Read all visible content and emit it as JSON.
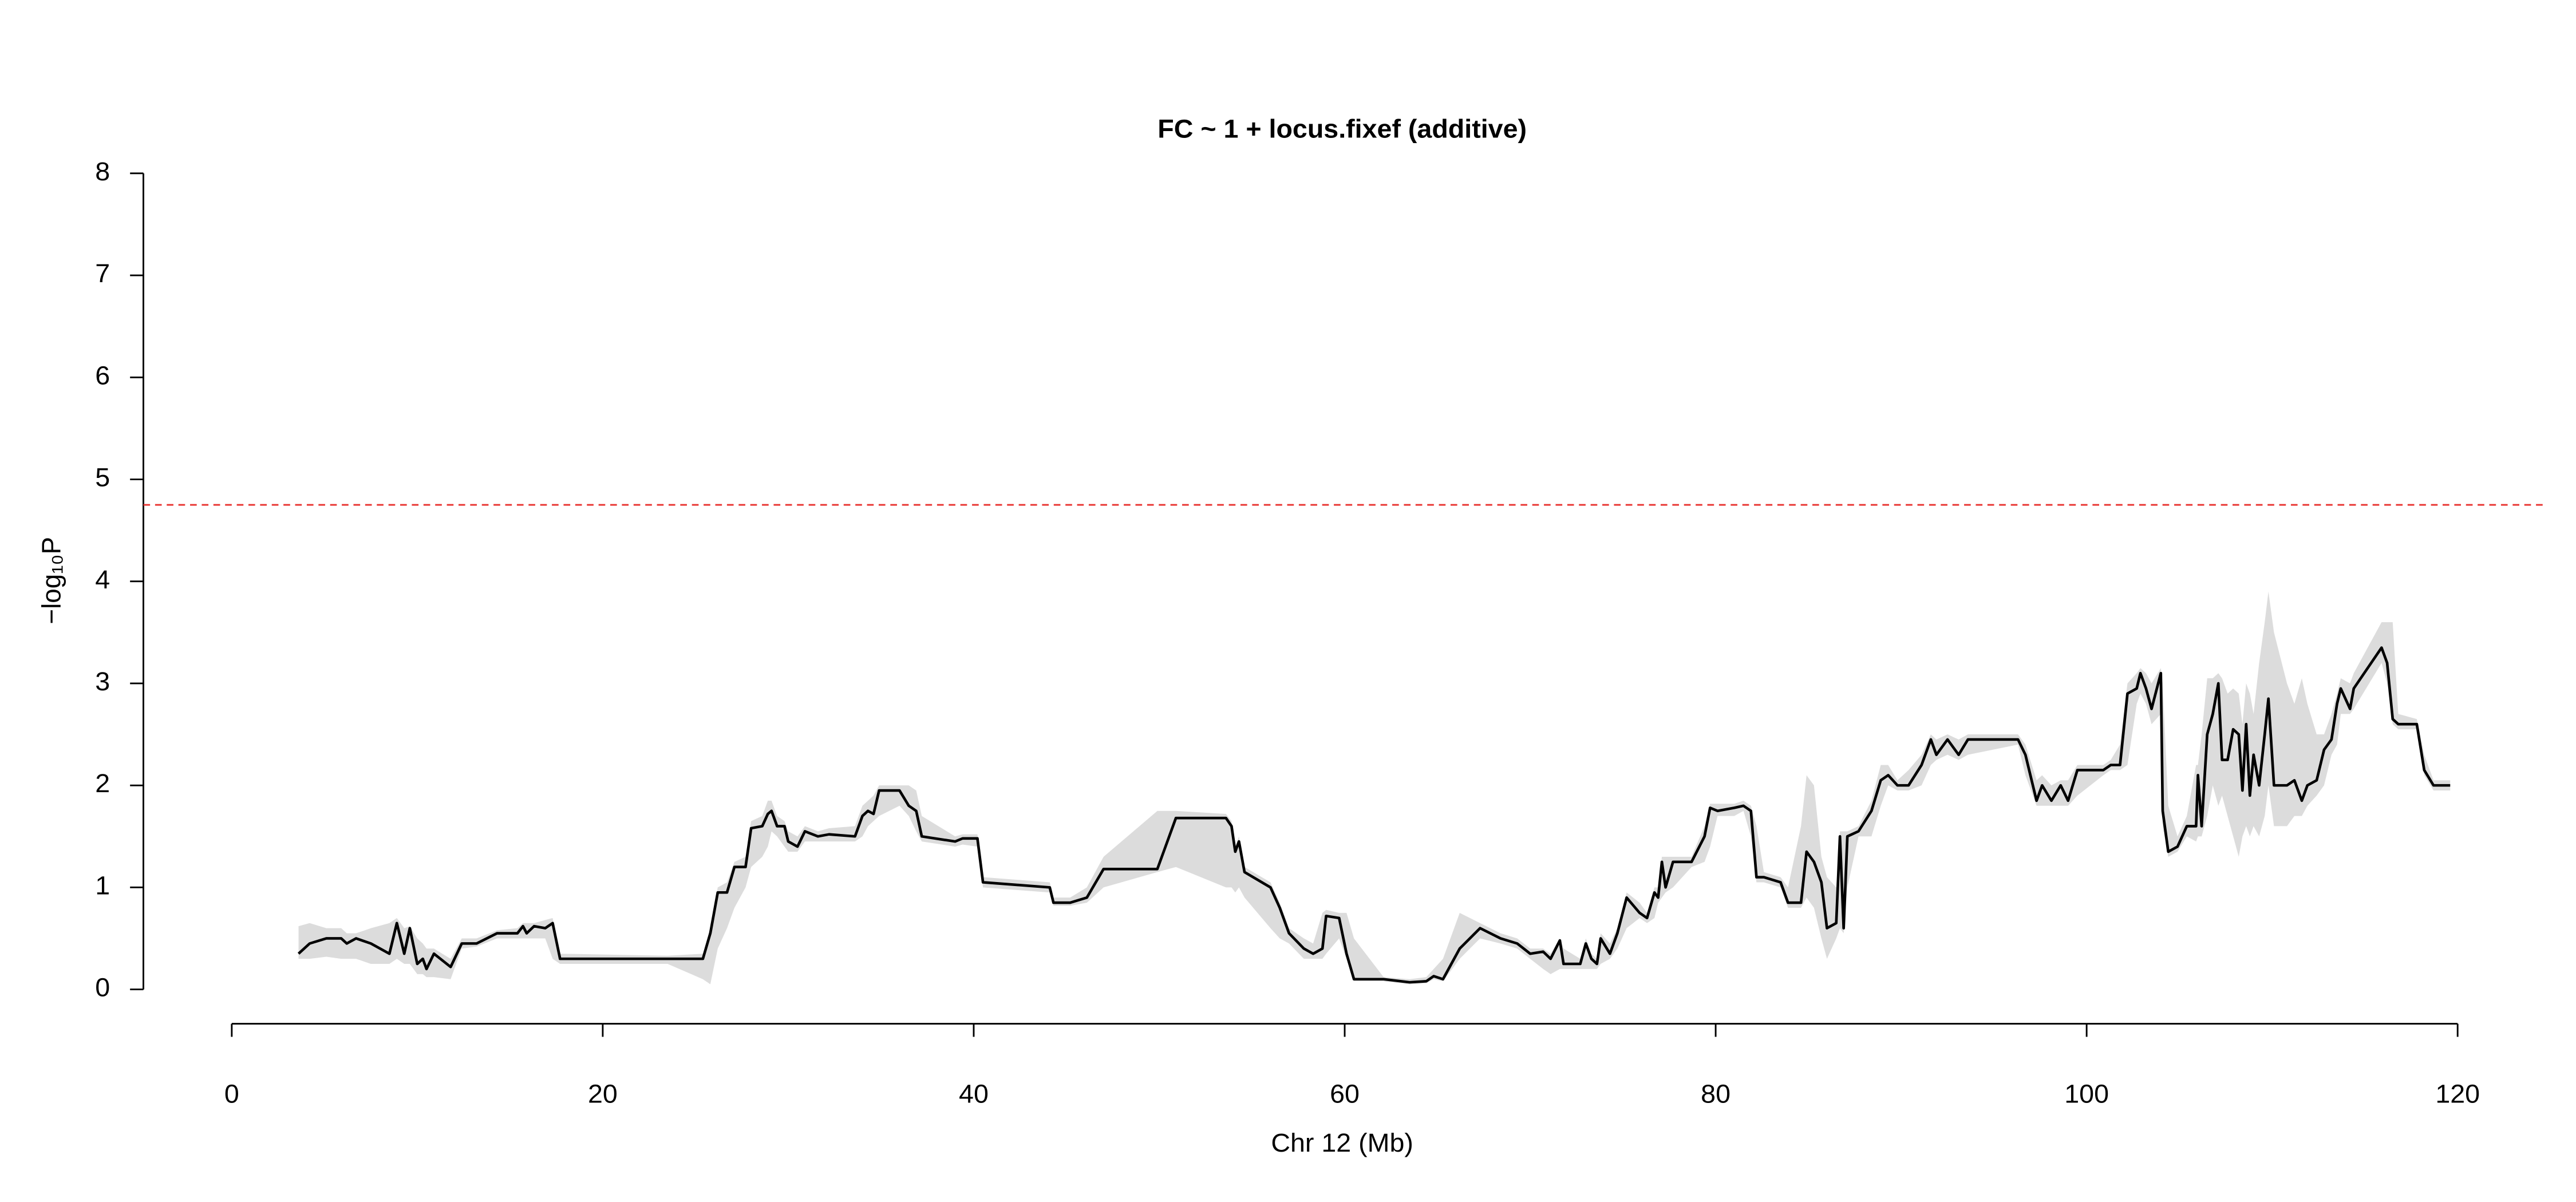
{
  "chart_data": {
    "type": "line",
    "title": "FC ~ 1 + locus.fixef (additive)",
    "xlabel": "Chr 12 (Mb)",
    "ylabel": "−log₁₀P",
    "xlim": [
      0,
      120
    ],
    "xticks": [
      0,
      20,
      40,
      60,
      80,
      100,
      120
    ],
    "ylim": [
      0,
      8
    ],
    "yticks": [
      0,
      1,
      2,
      3,
      4,
      5,
      6,
      7,
      8
    ],
    "threshold": 4.75,
    "threshold_color": "#e8322f",
    "band_color": "#dcdcdc",
    "x": [
      3.6,
      4.2,
      5.1,
      5.9,
      6.2,
      6.7,
      7.5,
      8.5,
      8.9,
      9.3,
      9.6,
      10,
      10.3,
      10.5,
      10.9,
      11.8,
      12.4,
      13.2,
      14.3,
      15.4,
      15.7,
      15.9,
      16.3,
      16.9,
      17.3,
      17.7,
      23.5,
      25.4,
      25.8,
      26.2,
      26.7,
      27.1,
      27.7,
      28,
      28.6,
      28.9,
      29.1,
      29.4,
      29.8,
      30,
      30.5,
      30.9,
      31.6,
      32.2,
      33.6,
      34,
      34.3,
      34.6,
      34.9,
      36,
      36.5,
      36.9,
      37.2,
      39,
      39.4,
      40.2,
      40.5,
      44.1,
      44.3,
      45.2,
      46.1,
      47,
      49.9,
      50.9,
      53.6,
      53.9,
      54.1,
      54.3,
      54.6,
      56,
      56.5,
      57,
      57.8,
      58.3,
      58.8,
      59,
      59.7,
      60.1,
      60.5,
      62.1,
      63.5,
      64.4,
      64.8,
      65.3,
      66.2,
      67.3,
      68.4,
      69.3,
      70,
      70.7,
      71.1,
      71.6,
      71.8,
      72.7,
      73,
      73.3,
      73.6,
      73.8,
      74.3,
      74.7,
      75.2,
      75.9,
      76.3,
      76.7,
      76.9,
      77.1,
      77.3,
      77.7,
      78.7,
      79.4,
      79.7,
      80.1,
      81,
      81.5,
      81.9,
      82.2,
      82.6,
      83.5,
      83.9,
      84.6,
      84.9,
      85.3,
      85.7,
      86,
      86.5,
      86.7,
      86.9,
      87.1,
      87.7,
      88.4,
      88.9,
      89.3,
      89.8,
      90.4,
      91.1,
      91.6,
      91.9,
      92.5,
      93.1,
      93.6,
      96.3,
      96.7,
      97.3,
      97.6,
      98.1,
      98.6,
      99,
      99.5,
      100.9,
      101.3,
      101.8,
      102.2,
      102.7,
      102.9,
      103.2,
      103.5,
      104,
      104.1,
      104.4,
      104.9,
      105.4,
      105.9,
      106,
      106.2,
      106.5,
      106.8,
      107.1,
      107.3,
      107.6,
      107.9,
      108.2,
      108.4,
      108.6,
      108.8,
      109,
      109.3,
      109.6,
      109.8,
      110.1,
      110.8,
      111.2,
      111.6,
      111.9,
      112.4,
      112.8,
      113.2,
      113.5,
      113.7,
      114.2,
      114.4,
      115.9,
      116.2,
      116.5,
      116.8,
      117.8,
      118.2,
      118.7,
      119.6
    ],
    "series": [
      {
        "color": "#000000",
        "values": [
          0.35,
          0.45,
          0.5,
          0.5,
          0.45,
          0.5,
          0.45,
          0.35,
          0.65,
          0.35,
          0.6,
          0.25,
          0.3,
          0.2,
          0.35,
          0.22,
          0.45,
          0.45,
          0.55,
          0.55,
          0.62,
          0.55,
          0.62,
          0.6,
          0.65,
          0.3,
          0.3,
          0.3,
          0.55,
          0.95,
          0.95,
          1.2,
          1.2,
          1.58,
          1.6,
          1.72,
          1.75,
          1.6,
          1.6,
          1.45,
          1.4,
          1.55,
          1.5,
          1.52,
          1.5,
          1.7,
          1.75,
          1.72,
          1.95,
          1.95,
          1.8,
          1.75,
          1.5,
          1.45,
          1.48,
          1.48,
          1.05,
          1.0,
          0.85,
          0.85,
          0.9,
          1.18,
          1.18,
          1.68,
          1.68,
          1.6,
          1.35,
          1.45,
          1.15,
          1.0,
          0.8,
          0.55,
          0.4,
          0.35,
          0.4,
          0.72,
          0.7,
          0.35,
          0.1,
          0.1,
          0.07,
          0.08,
          0.13,
          0.1,
          0.4,
          0.6,
          0.5,
          0.45,
          0.35,
          0.37,
          0.3,
          0.48,
          0.25,
          0.25,
          0.45,
          0.3,
          0.25,
          0.5,
          0.35,
          0.55,
          0.9,
          0.75,
          0.7,
          0.95,
          0.9,
          1.25,
          1.0,
          1.25,
          1.25,
          1.5,
          1.78,
          1.75,
          1.78,
          1.8,
          1.75,
          1.1,
          1.1,
          1.05,
          0.85,
          0.85,
          1.35,
          1.25,
          1.05,
          0.6,
          0.65,
          1.5,
          0.6,
          1.5,
          1.55,
          1.75,
          2.05,
          2.1,
          2.0,
          2.0,
          2.2,
          2.45,
          2.3,
          2.45,
          2.3,
          2.45,
          2.45,
          2.3,
          1.85,
          2.0,
          1.85,
          2.0,
          1.85,
          2.15,
          2.15,
          2.2,
          2.2,
          2.9,
          2.95,
          3.1,
          2.95,
          2.75,
          3.1,
          1.75,
          1.35,
          1.4,
          1.6,
          1.6,
          2.1,
          1.6,
          2.5,
          2.7,
          3.0,
          2.25,
          2.25,
          2.55,
          2.5,
          1.95,
          2.6,
          1.9,
          2.3,
          2.0,
          2.5,
          2.85,
          2.0,
          2.0,
          2.05,
          1.85,
          2.0,
          2.05,
          2.35,
          2.45,
          2.8,
          2.95,
          2.75,
          2.95,
          3.35,
          3.2,
          2.65,
          2.6,
          2.6,
          2.15,
          2.0,
          2.0
        ],
        "lower": [
          0.3,
          0.3,
          0.32,
          0.3,
          0.3,
          0.3,
          0.25,
          0.25,
          0.3,
          0.25,
          0.25,
          0.15,
          0.15,
          0.12,
          0.12,
          0.1,
          0.4,
          0.42,
          0.5,
          0.5,
          0.5,
          0.5,
          0.5,
          0.5,
          0.3,
          0.25,
          0.25,
          0.1,
          0.05,
          0.4,
          0.6,
          0.8,
          1.0,
          1.2,
          1.3,
          1.4,
          1.55,
          1.5,
          1.4,
          1.35,
          1.35,
          1.45,
          1.45,
          1.45,
          1.45,
          1.5,
          1.6,
          1.65,
          1.7,
          1.8,
          1.7,
          1.55,
          1.45,
          1.4,
          1.42,
          1.4,
          1.0,
          0.95,
          0.82,
          0.82,
          0.85,
          1.0,
          1.15,
          1.2,
          1.0,
          1.0,
          0.95,
          1.0,
          0.9,
          0.6,
          0.5,
          0.45,
          0.3,
          0.3,
          0.3,
          0.35,
          0.5,
          0.3,
          0.08,
          0.08,
          0.05,
          0.06,
          0.1,
          0.08,
          0.3,
          0.5,
          0.45,
          0.4,
          0.3,
          0.2,
          0.15,
          0.2,
          0.2,
          0.2,
          0.2,
          0.2,
          0.2,
          0.25,
          0.3,
          0.4,
          0.6,
          0.7,
          0.65,
          0.7,
          0.85,
          0.9,
          0.95,
          1.0,
          1.2,
          1.25,
          1.4,
          1.7,
          1.7,
          1.75,
          1.5,
          1.05,
          1.05,
          1.0,
          0.8,
          0.8,
          0.9,
          0.8,
          0.5,
          0.3,
          0.5,
          0.6,
          0.55,
          1.0,
          1.5,
          1.5,
          1.8,
          2.0,
          1.95,
          1.95,
          2.0,
          2.2,
          2.25,
          2.3,
          2.25,
          2.3,
          2.4,
          2.1,
          1.8,
          1.8,
          1.8,
          1.8,
          1.8,
          1.9,
          2.1,
          2.15,
          2.15,
          2.2,
          2.8,
          2.9,
          2.8,
          2.6,
          2.7,
          1.6,
          1.3,
          1.35,
          1.5,
          1.45,
          1.5,
          1.5,
          1.7,
          2.0,
          1.8,
          1.9,
          1.7,
          1.5,
          1.3,
          1.5,
          1.6,
          1.5,
          1.6,
          1.5,
          1.7,
          2.0,
          1.6,
          1.6,
          1.7,
          1.7,
          1.8,
          1.9,
          2.0,
          2.3,
          2.4,
          2.7,
          2.7,
          2.75,
          3.2,
          3.0,
          2.6,
          2.55,
          2.55,
          2.1,
          1.95,
          1.95
        ],
        "upper": [
          0.62,
          0.65,
          0.6,
          0.6,
          0.55,
          0.55,
          0.6,
          0.65,
          0.7,
          0.6,
          0.62,
          0.5,
          0.45,
          0.4,
          0.4,
          0.3,
          0.5,
          0.5,
          0.58,
          0.6,
          0.65,
          0.65,
          0.65,
          0.68,
          0.7,
          0.35,
          0.33,
          0.35,
          0.6,
          1.0,
          1.05,
          1.25,
          1.3,
          1.65,
          1.7,
          1.85,
          1.85,
          1.7,
          1.65,
          1.55,
          1.5,
          1.6,
          1.55,
          1.58,
          1.6,
          1.8,
          1.85,
          1.9,
          2.0,
          2.0,
          2.0,
          1.95,
          1.7,
          1.5,
          1.52,
          1.52,
          1.1,
          1.05,
          0.9,
          0.9,
          1.0,
          1.3,
          1.75,
          1.75,
          1.72,
          1.65,
          1.4,
          1.5,
          1.2,
          1.05,
          0.85,
          0.6,
          0.5,
          0.45,
          0.75,
          0.78,
          0.75,
          0.75,
          0.5,
          0.12,
          0.1,
          0.12,
          0.2,
          0.3,
          0.75,
          0.65,
          0.55,
          0.5,
          0.4,
          0.4,
          0.35,
          0.5,
          0.4,
          0.3,
          0.5,
          0.35,
          0.3,
          0.55,
          0.45,
          0.6,
          0.95,
          0.85,
          0.75,
          1.0,
          1.0,
          1.3,
          1.3,
          1.3,
          1.3,
          1.6,
          1.82,
          1.82,
          1.82,
          1.85,
          1.8,
          1.6,
          1.15,
          1.1,
          1.0,
          1.6,
          2.1,
          2.0,
          1.3,
          1.1,
          1.0,
          1.55,
          1.55,
          1.55,
          1.6,
          1.85,
          2.2,
          2.2,
          2.05,
          2.15,
          2.3,
          2.5,
          2.45,
          2.5,
          2.45,
          2.5,
          2.5,
          2.4,
          2.05,
          2.1,
          2.0,
          2.05,
          2.05,
          2.2,
          2.2,
          2.25,
          2.4,
          3.0,
          3.1,
          3.15,
          3.1,
          3.0,
          3.15,
          3.0,
          1.8,
          1.5,
          1.7,
          2.2,
          2.2,
          2.5,
          3.05,
          3.05,
          3.1,
          3.05,
          2.9,
          2.95,
          2.9,
          2.6,
          3.0,
          2.9,
          2.7,
          3.2,
          3.6,
          3.9,
          3.5,
          3.0,
          2.8,
          3.05,
          2.8,
          2.5,
          2.5,
          2.7,
          2.9,
          3.05,
          3.0,
          3.1,
          3.6,
          3.6,
          3.6,
          2.7,
          2.65,
          2.3,
          2.05,
          2.05
        ]
      }
    ]
  }
}
